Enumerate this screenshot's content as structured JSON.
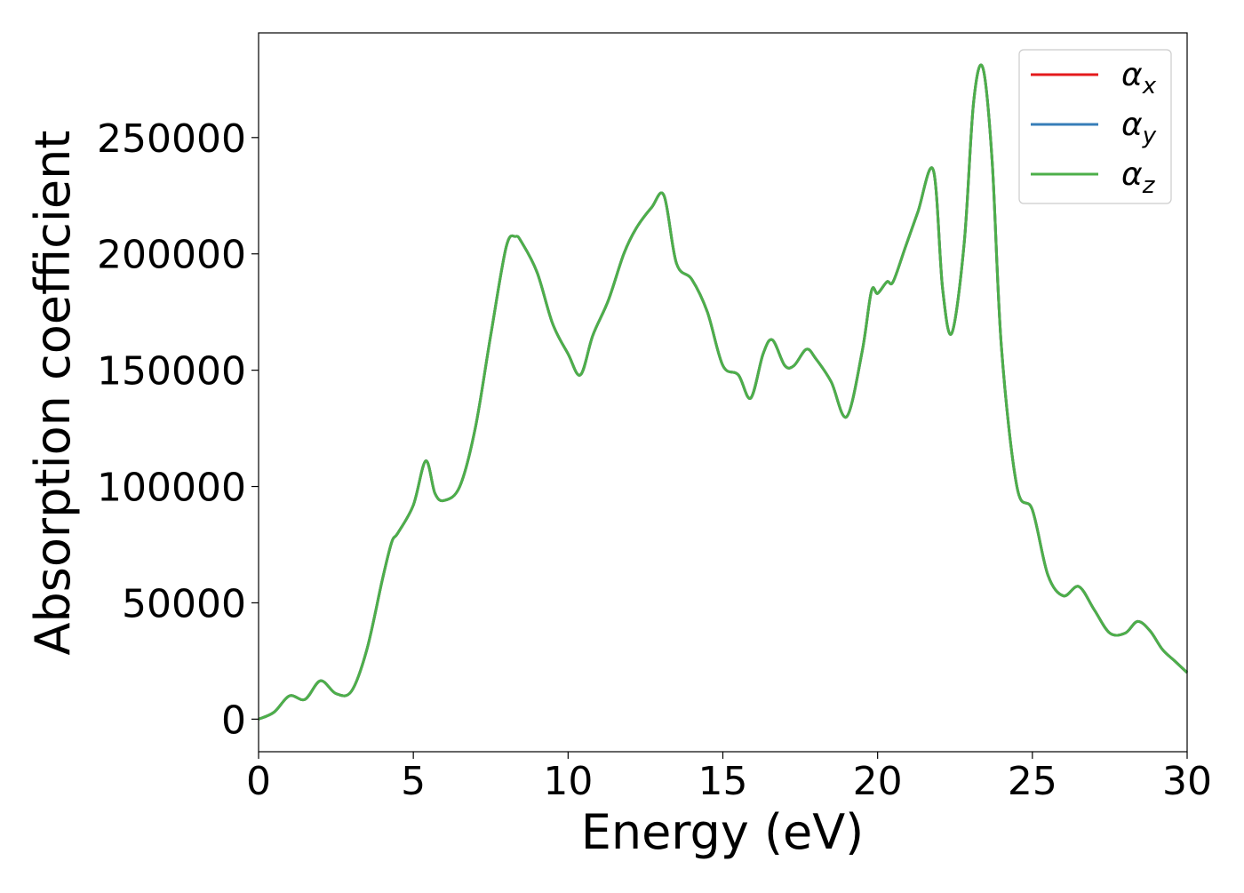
{
  "chart_data": {
    "type": "line",
    "title": "",
    "xlabel": "Energy (eV)",
    "ylabel": "Absorption coefficient",
    "xlim": [
      0,
      30
    ],
    "ylim": [
      -14000,
      295000
    ],
    "xticks": [
      0,
      5,
      10,
      15,
      20,
      25,
      30
    ],
    "xtick_labels": [
      "0",
      "5",
      "10",
      "15",
      "20",
      "25",
      "30"
    ],
    "yticks": [
      0,
      50000,
      100000,
      150000,
      200000,
      250000
    ],
    "ytick_labels": [
      "0",
      "50000",
      "100000",
      "150000",
      "200000",
      "250000"
    ],
    "grid": false,
    "legend": {
      "position": "top-right"
    },
    "x": [
      0,
      0.5,
      1.0,
      1.5,
      2.0,
      2.5,
      3.0,
      3.5,
      4.0,
      4.3,
      4.5,
      5.0,
      5.4,
      5.7,
      6.0,
      6.5,
      7.0,
      7.5,
      8.0,
      8.3,
      8.5,
      9.0,
      9.5,
      10.0,
      10.4,
      10.8,
      11.3,
      11.8,
      12.2,
      12.7,
      13.1,
      13.5,
      14.0,
      14.5,
      15.0,
      15.5,
      15.9,
      16.3,
      16.6,
      17.0,
      17.3,
      17.7,
      18.0,
      18.5,
      19.0,
      19.5,
      19.8,
      20.0,
      20.3,
      20.5,
      20.9,
      21.3,
      21.8,
      22.1,
      22.4,
      22.8,
      23.1,
      23.4,
      23.7,
      24.0,
      24.5,
      25.0,
      25.5,
      26.0,
      26.5,
      27.0,
      27.5,
      28.0,
      28.4,
      28.8,
      29.2,
      29.6,
      30.0
    ],
    "series": [
      {
        "name": "α_x",
        "color": "#e41a1c",
        "values": [
          0,
          3000,
          10000,
          8500,
          16500,
          11000,
          12000,
          30000,
          60000,
          76000,
          80000,
          92000,
          111000,
          97000,
          94000,
          100000,
          125000,
          165000,
          203000,
          207500,
          205000,
          192000,
          170000,
          157000,
          148000,
          165000,
          180000,
          200000,
          211000,
          220000,
          225000,
          196000,
          189000,
          175000,
          152000,
          148000,
          138000,
          157000,
          163000,
          152000,
          152000,
          159000,
          155000,
          145000,
          130000,
          158000,
          184000,
          183000,
          188000,
          188000,
          203000,
          218000,
          236000,
          185000,
          166000,
          205000,
          265000,
          280000,
          240000,
          160000,
          100000,
          90000,
          62000,
          53000,
          57000,
          47000,
          37000,
          37000,
          42000,
          38000,
          30000,
          25000,
          20000
        ]
      },
      {
        "name": "α_y",
        "color": "#377eb8",
        "values": [
          0,
          3000,
          10000,
          8500,
          16500,
          11000,
          12000,
          30000,
          60000,
          76000,
          80000,
          92000,
          111000,
          97000,
          94000,
          100000,
          125000,
          165000,
          203000,
          207500,
          205000,
          192000,
          170000,
          157000,
          148000,
          165000,
          180000,
          200000,
          211000,
          220000,
          225000,
          196000,
          189000,
          175000,
          152000,
          148000,
          138000,
          157000,
          163000,
          152000,
          152000,
          159000,
          155000,
          145000,
          130000,
          158000,
          184000,
          183000,
          188000,
          188000,
          203000,
          218000,
          236000,
          185000,
          166000,
          205000,
          265000,
          280000,
          240000,
          160000,
          100000,
          90000,
          62000,
          53000,
          57000,
          47000,
          37000,
          37000,
          42000,
          38000,
          30000,
          25000,
          20000
        ]
      },
      {
        "name": "α_z",
        "color": "#4daf4a",
        "values": [
          0,
          3000,
          10000,
          8500,
          16500,
          11000,
          12000,
          30000,
          60000,
          76000,
          80000,
          92000,
          111000,
          97000,
          94000,
          100000,
          125000,
          165000,
          203000,
          207500,
          205000,
          192000,
          170000,
          157000,
          148000,
          165000,
          180000,
          200000,
          211000,
          220000,
          225000,
          196000,
          189000,
          175000,
          152000,
          148000,
          138000,
          157000,
          163000,
          152000,
          152000,
          159000,
          155000,
          145000,
          130000,
          158000,
          184000,
          183000,
          188000,
          188000,
          203000,
          218000,
          236000,
          185000,
          166000,
          205000,
          265000,
          280000,
          240000,
          160000,
          100000,
          90000,
          62000,
          53000,
          57000,
          47000,
          37000,
          37000,
          42000,
          38000,
          30000,
          25000,
          20000
        ]
      }
    ]
  },
  "legend_labels": [
    {
      "base": "α",
      "sub": "x"
    },
    {
      "base": "α",
      "sub": "y"
    },
    {
      "base": "α",
      "sub": "z"
    }
  ]
}
